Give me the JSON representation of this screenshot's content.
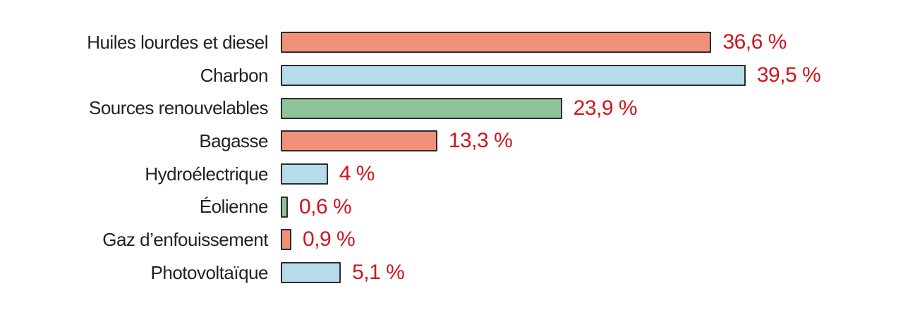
{
  "chart_data": {
    "type": "bar",
    "orientation": "horizontal",
    "title": "",
    "xlabel": "",
    "ylabel": "",
    "unit": "%",
    "xlim": [
      0,
      40
    ],
    "grid": false,
    "legend": false,
    "categories": [
      "Huiles lourdes et diesel",
      "Charbon",
      "Sources renouvelables",
      "Bagasse",
      "Hydroélectrique",
      "Éolienne",
      "Gaz d’enfouissement",
      "Photovoltaïque"
    ],
    "values": [
      36.6,
      39.5,
      23.9,
      13.3,
      4,
      0.6,
      0.9,
      5.1
    ],
    "value_labels": [
      "36,6 %",
      "39,5 %",
      "23,9 %",
      "13,3 %",
      "4 %",
      "0,6 %",
      "0,9 %",
      "5,1 %"
    ],
    "bar_colors": [
      "#f0927a",
      "#b6dce9",
      "#8fc49b",
      "#f0927a",
      "#b6dce9",
      "#8fc49b",
      "#f0927a",
      "#b6dce9"
    ],
    "colors": {
      "value_text": "#d0161f",
      "label_text": "#242122",
      "bar_border": "#2d2b2c",
      "background": "#ffffff"
    }
  }
}
